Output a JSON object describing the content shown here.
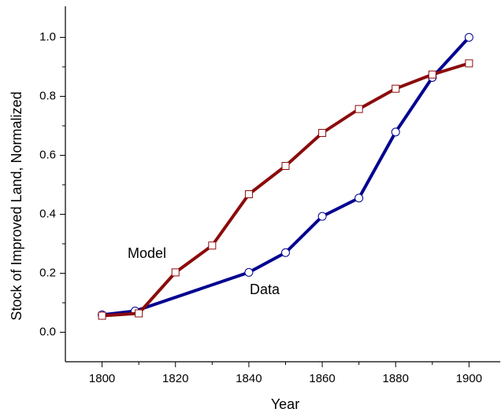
{
  "chart_data": {
    "type": "line",
    "x_label": "Year",
    "y_label": "Stock of Improved Land, Normalized",
    "xlim": [
      1790,
      1908.5
    ],
    "ylim": [
      -0.1,
      1.1
    ],
    "xticks": [
      1800,
      1820,
      1840,
      1860,
      1880,
      1900
    ],
    "yticks": [
      {
        "value": 0,
        "label": "0.0"
      },
      0.2,
      0.4,
      0.6,
      0.8,
      {
        "value": 1,
        "label": "1.0"
      }
    ],
    "series": [
      {
        "name": "Data",
        "color": "#000090",
        "marker": "circle",
        "x": [
          1800,
          1809,
          1840,
          1850,
          1860,
          1870,
          1880,
          1890,
          1900
        ],
        "values": [
          0.059,
          0.072,
          0.203,
          0.27,
          0.393,
          0.455,
          0.679,
          0.864,
          1.0
        ]
      },
      {
        "name": "Model",
        "color": "#8b0b0b",
        "marker": "square",
        "x": [
          1800,
          1810,
          1820,
          1830,
          1840,
          1850,
          1860,
          1870,
          1880,
          1890,
          1900
        ],
        "values": [
          0.056,
          0.064,
          0.203,
          0.294,
          0.468,
          0.564,
          0.676,
          0.757,
          0.826,
          0.874,
          0.912
        ]
      }
    ]
  }
}
